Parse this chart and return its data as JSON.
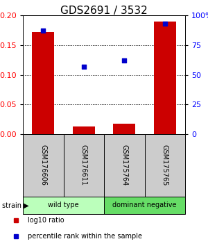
{
  "title": "GDS2691 / 3532",
  "samples": [
    "GSM176606",
    "GSM176611",
    "GSM175764",
    "GSM175765"
  ],
  "log10_ratio": [
    0.172,
    0.013,
    0.017,
    0.19
  ],
  "percentile_rank": [
    87,
    57,
    62,
    93
  ],
  "bar_color": "#cc0000",
  "scatter_color": "#0000cc",
  "left_ylim": [
    0,
    0.2
  ],
  "right_ylim": [
    0,
    100
  ],
  "left_yticks": [
    0,
    0.05,
    0.1,
    0.15,
    0.2
  ],
  "right_yticks": [
    0,
    25,
    50,
    75,
    100
  ],
  "right_yticklabels": [
    "0",
    "25",
    "50",
    "75",
    "100%"
  ],
  "groups": [
    {
      "label": "wild type",
      "samples": [
        0,
        1
      ],
      "color": "#bbffbb"
    },
    {
      "label": "dominant negative",
      "samples": [
        2,
        3
      ],
      "color": "#66dd66"
    }
  ],
  "legend_items": [
    {
      "color": "#cc0000",
      "label": "log10 ratio"
    },
    {
      "color": "#0000cc",
      "label": "percentile rank within the sample"
    }
  ],
  "bar_width": 0.55,
  "background_color": "#ffffff",
  "label_box_color": "#cccccc",
  "title_fontsize": 11,
  "tick_fontsize": 8,
  "sample_fontsize": 7,
  "group_fontsize": 7,
  "legend_fontsize": 7
}
